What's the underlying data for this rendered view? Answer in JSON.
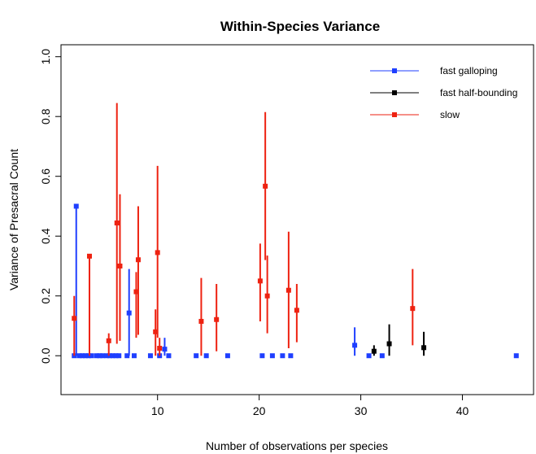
{
  "chart_data": {
    "type": "scatter",
    "title": "Within-Species Variance",
    "xlabel": "Number of observations per species",
    "ylabel": "Variance of Presacral Count",
    "xlim": [
      0.5,
      47
    ],
    "ylim": [
      -0.13,
      1.04
    ],
    "x_ticks": [
      10,
      20,
      30,
      40
    ],
    "y_ticks": [
      0.0,
      0.2,
      0.4,
      0.6,
      0.8,
      1.0
    ],
    "x_tick_labels": [
      "10",
      "20",
      "30",
      "40"
    ],
    "y_tick_labels": [
      "0.0",
      "0.2",
      "0.4",
      "0.6",
      "0.8",
      "1.0"
    ],
    "grid": false,
    "legend_position": "top-right",
    "series": [
      {
        "name": "fast galloping",
        "color": "#1f3fff",
        "points": [
          {
            "x": 1.8,
            "y": 0.0,
            "lo": 0.0,
            "hi": 0.0
          },
          {
            "x": 2.0,
            "y": 0.5,
            "lo": 0.0,
            "hi": 0.5
          },
          {
            "x": 2.3,
            "y": 0.0,
            "lo": 0.0,
            "hi": 0.0
          },
          {
            "x": 2.6,
            "y": 0.0,
            "lo": 0.0,
            "hi": 0.0
          },
          {
            "x": 2.9,
            "y": 0.0,
            "lo": 0.0,
            "hi": 0.0
          },
          {
            "x": 3.2,
            "y": 0.0,
            "lo": 0.0,
            "hi": 0.0
          },
          {
            "x": 3.5,
            "y": 0.0,
            "lo": 0.0,
            "hi": 0.0
          },
          {
            "x": 4.0,
            "y": 0.0,
            "lo": 0.0,
            "hi": 0.0
          },
          {
            "x": 4.3,
            "y": 0.0,
            "lo": 0.0,
            "hi": 0.0
          },
          {
            "x": 4.6,
            "y": 0.0,
            "lo": 0.0,
            "hi": 0.0
          },
          {
            "x": 5.0,
            "y": 0.0,
            "lo": 0.0,
            "hi": 0.0
          },
          {
            "x": 5.3,
            "y": 0.0,
            "lo": 0.0,
            "hi": 0.0
          },
          {
            "x": 5.6,
            "y": 0.0,
            "lo": 0.0,
            "hi": 0.0
          },
          {
            "x": 5.9,
            "y": 0.0,
            "lo": 0.0,
            "hi": 0.0
          },
          {
            "x": 6.2,
            "y": 0.0,
            "lo": 0.0,
            "hi": 0.0
          },
          {
            "x": 7.0,
            "y": 0.0,
            "lo": 0.0,
            "hi": 0.0
          },
          {
            "x": 7.2,
            "y": 0.143,
            "lo": 0.0,
            "hi": 0.29
          },
          {
            "x": 7.7,
            "y": 0.0,
            "lo": 0.0,
            "hi": 0.0
          },
          {
            "x": 9.3,
            "y": 0.0,
            "lo": 0.0,
            "hi": 0.0
          },
          {
            "x": 10.2,
            "y": 0.0,
            "lo": 0.0,
            "hi": 0.0
          },
          {
            "x": 10.7,
            "y": 0.022,
            "lo": 0.0,
            "hi": 0.06
          },
          {
            "x": 11.1,
            "y": 0.0,
            "lo": 0.0,
            "hi": 0.0
          },
          {
            "x": 13.8,
            "y": 0.0,
            "lo": 0.0,
            "hi": 0.0
          },
          {
            "x": 14.8,
            "y": 0.0,
            "lo": 0.0,
            "hi": 0.0
          },
          {
            "x": 16.9,
            "y": 0.0,
            "lo": 0.0,
            "hi": 0.0
          },
          {
            "x": 20.3,
            "y": 0.0,
            "lo": 0.0,
            "hi": 0.0
          },
          {
            "x": 21.3,
            "y": 0.0,
            "lo": 0.0,
            "hi": 0.0
          },
          {
            "x": 22.3,
            "y": 0.0,
            "lo": 0.0,
            "hi": 0.0
          },
          {
            "x": 23.1,
            "y": 0.0,
            "lo": 0.0,
            "hi": 0.0
          },
          {
            "x": 29.4,
            "y": 0.035,
            "lo": 0.0,
            "hi": 0.095
          },
          {
            "x": 30.8,
            "y": 0.0,
            "lo": 0.0,
            "hi": 0.0
          },
          {
            "x": 32.1,
            "y": 0.0,
            "lo": 0.0,
            "hi": 0.0
          },
          {
            "x": 45.3,
            "y": 0.0,
            "lo": 0.0,
            "hi": 0.0
          }
        ]
      },
      {
        "name": "fast half-bounding",
        "color": "#000000",
        "points": [
          {
            "x": 31.3,
            "y": 0.015,
            "lo": 0.0,
            "hi": 0.035
          },
          {
            "x": 32.8,
            "y": 0.04,
            "lo": 0.0,
            "hi": 0.105
          },
          {
            "x": 36.2,
            "y": 0.027,
            "lo": 0.0,
            "hi": 0.08
          }
        ]
      },
      {
        "name": "slow",
        "color": "#ee2211",
        "points": [
          {
            "x": 1.8,
            "y": 0.125,
            "lo": 0.0,
            "hi": 0.2
          },
          {
            "x": 3.3,
            "y": 0.333,
            "lo": 0.0,
            "hi": 0.333
          },
          {
            "x": 5.2,
            "y": 0.05,
            "lo": 0.0,
            "hi": 0.075
          },
          {
            "x": 6.0,
            "y": 0.444,
            "lo": 0.04,
            "hi": 0.845
          },
          {
            "x": 6.3,
            "y": 0.3,
            "lo": 0.05,
            "hi": 0.54
          },
          {
            "x": 7.9,
            "y": 0.214,
            "lo": 0.06,
            "hi": 0.28
          },
          {
            "x": 8.1,
            "y": 0.321,
            "lo": 0.07,
            "hi": 0.5
          },
          {
            "x": 9.8,
            "y": 0.08,
            "lo": 0.0,
            "hi": 0.155
          },
          {
            "x": 10.0,
            "y": 0.345,
            "lo": 0.06,
            "hi": 0.635
          },
          {
            "x": 10.2,
            "y": 0.025,
            "lo": 0.0,
            "hi": 0.06
          },
          {
            "x": 14.3,
            "y": 0.115,
            "lo": 0.0,
            "hi": 0.26
          },
          {
            "x": 15.8,
            "y": 0.121,
            "lo": 0.015,
            "hi": 0.24
          },
          {
            "x": 20.1,
            "y": 0.25,
            "lo": 0.115,
            "hi": 0.375
          },
          {
            "x": 20.6,
            "y": 0.567,
            "lo": 0.32,
            "hi": 0.815
          },
          {
            "x": 20.8,
            "y": 0.2,
            "lo": 0.075,
            "hi": 0.335
          },
          {
            "x": 22.9,
            "y": 0.219,
            "lo": 0.025,
            "hi": 0.415
          },
          {
            "x": 23.7,
            "y": 0.152,
            "lo": 0.045,
            "hi": 0.24
          },
          {
            "x": 35.1,
            "y": 0.158,
            "lo": 0.035,
            "hi": 0.29
          }
        ]
      }
    ]
  }
}
